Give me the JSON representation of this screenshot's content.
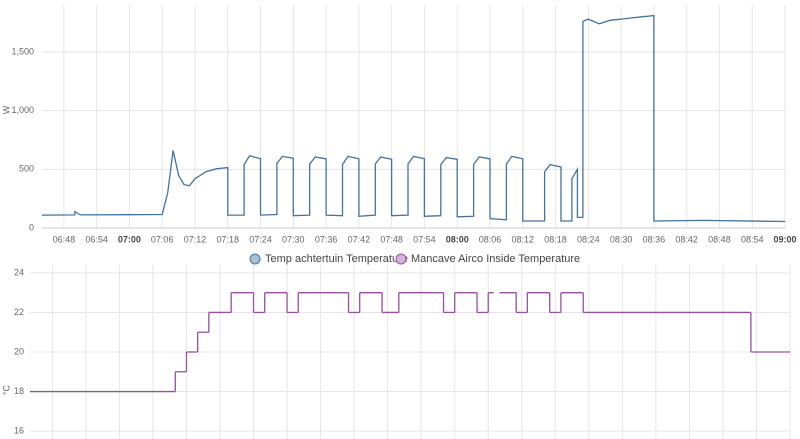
{
  "chart_data": [
    {
      "type": "line",
      "ylabel": "W",
      "xlim": [
        "06:44",
        "09:00"
      ],
      "xticks": [
        "06:48",
        "06:54",
        "07:00",
        "07:06",
        "07:12",
        "07:18",
        "07:24",
        "07:30",
        "07:36",
        "07:42",
        "07:48",
        "07:54",
        "08:00",
        "08:06",
        "08:12",
        "08:18",
        "08:24",
        "08:30",
        "08:36",
        "08:42",
        "08:48",
        "08:54",
        "09:00"
      ],
      "ylim": [
        0,
        1900
      ],
      "yticks": [
        0,
        500,
        {
          "value": 1000,
          "label": "1,000"
        },
        {
          "value": 1500,
          "label": "1,500"
        }
      ],
      "grid": true,
      "x": [
        "06:44",
        "06:50",
        "06:50",
        "06:51",
        "07:06",
        "07:07",
        "07:08",
        "07:09",
        "07:10",
        "07:11",
        "07:12",
        "07:14",
        "07:16",
        "07:18",
        "07:18",
        "07:21",
        "07:21",
        "07:22",
        "07:24",
        "07:24",
        "07:27",
        "07:27",
        "07:28",
        "07:30",
        "07:30",
        "07:33",
        "07:33",
        "07:34",
        "07:36",
        "07:36",
        "07:39",
        "07:39",
        "07:40",
        "07:42",
        "07:42",
        "07:45",
        "07:45",
        "07:46",
        "07:48",
        "07:48",
        "07:51",
        "07:51",
        "07:52",
        "07:54",
        "07:54",
        "07:57",
        "07:57",
        "07:58",
        "08:00",
        "08:00",
        "08:03",
        "08:03",
        "08:04",
        "08:06",
        "08:06",
        "08:09",
        "08:09",
        "08:10",
        "08:12",
        "08:12",
        "08:16",
        "08:16",
        "08:17",
        "08:19",
        "08:19",
        "08:21",
        "08:21",
        "08:22",
        "08:22",
        "08:23",
        "08:23",
        "08:24",
        "08:26",
        "08:28",
        "08:30",
        "08:32",
        "08:34",
        "08:36",
        "08:36",
        "08:45",
        "09:00"
      ],
      "series": [
        {
          "name": "Temp achtertuin Temperature",
          "color": "#44739e",
          "values": [
            110,
            112,
            140,
            112,
            115,
            300,
            660,
            450,
            370,
            360,
            420,
            480,
            505,
            515,
            110,
            110,
            540,
            615,
            590,
            110,
            115,
            550,
            610,
            595,
            105,
            110,
            545,
            605,
            590,
            110,
            105,
            540,
            610,
            590,
            100,
            110,
            545,
            605,
            585,
            105,
            110,
            545,
            610,
            590,
            100,
            105,
            540,
            600,
            585,
            95,
            100,
            540,
            605,
            590,
            80,
            70,
            545,
            610,
            590,
            60,
            60,
            480,
            540,
            520,
            60,
            60,
            420,
            500,
            90,
            90,
            1760,
            1780,
            1740,
            1770,
            1780,
            1790,
            1800,
            1810,
            60,
            65,
            55
          ]
        }
      ]
    },
    {
      "type": "step",
      "ylabel": "°C",
      "xlim": [
        "06:44",
        "09:00"
      ],
      "ylim": [
        15.6,
        24.4
      ],
      "yticks": [
        16,
        18,
        20,
        22,
        24
      ],
      "grid": true,
      "x": [
        "06:44",
        "07:10",
        "07:12",
        "07:14",
        "07:16",
        "07:20",
        "07:24",
        "07:26",
        "07:30",
        "07:32",
        "07:41",
        "07:43",
        "07:47",
        "07:50",
        "07:58",
        "08:00",
        "08:04",
        "08:06",
        "08:07",
        "08:08",
        "08:11",
        "08:13",
        "08:17",
        "08:19",
        "08:23",
        "08:53",
        "09:00"
      ],
      "series": [
        {
          "name": "Mancave Airco Inside Temperature",
          "color": "#984ea3",
          "values": [
            18,
            19,
            20,
            21,
            22,
            23,
            22,
            23,
            22,
            23,
            22,
            23,
            22,
            23,
            22,
            23,
            22,
            23,
            null,
            23,
            22,
            23,
            22,
            23,
            22,
            20,
            20
          ]
        }
      ]
    }
  ]
}
